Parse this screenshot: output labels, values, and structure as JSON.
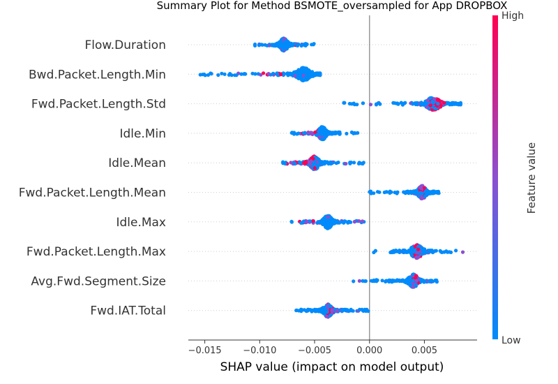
{
  "chart_data": {
    "type": "scatter",
    "subtype": "shap-beeswarm",
    "title": "Summary Plot for Method BSMOTE_oversampled for App DROPBOX",
    "xlabel": "SHAP value (impact on model output)",
    "xlim": [
      -0.0165,
      0.0098
    ],
    "xticks": [
      -0.015,
      -0.01,
      -0.005,
      0.0,
      0.005
    ],
    "xtick_labels": [
      "−0.015",
      "−0.010",
      "−0.005",
      "0.000",
      "0.005"
    ],
    "zero_line": 0.0,
    "colorbar": {
      "title": "Feature value",
      "high_label": "High",
      "low_label": "Low",
      "low_color": "#008bfb",
      "mid_color": "#8c4fd0",
      "high_color": "#ff0052"
    },
    "features": [
      {
        "name": "Flow.Duration",
        "range": [
          -0.0105,
          -0.0045
        ],
        "mode": -0.0078,
        "high_region": [
          -0.0068,
          -0.006
        ]
      },
      {
        "name": "Bwd.Packet.Length.Min",
        "range": [
          -0.0155,
          -0.0045
        ],
        "mode": -0.006,
        "high_region": [
          -0.01,
          -0.008
        ]
      },
      {
        "name": "Fwd.Packet.Length.Std",
        "range": [
          -0.0028,
          0.0083
        ],
        "mode": 0.0058,
        "high_region": [
          0.0052,
          0.0068
        ]
      },
      {
        "name": "Idle.Min",
        "range": [
          -0.0072,
          -0.001
        ],
        "mode": -0.0043,
        "high_region": [
          -0.0068,
          -0.0045
        ]
      },
      {
        "name": "Idle.Mean",
        "range": [
          -0.008,
          -0.0005
        ],
        "mode": -0.005,
        "high_region": [
          -0.0075,
          -0.0048
        ]
      },
      {
        "name": "Fwd.Packet.Length.Mean",
        "range": [
          0.0,
          0.0067
        ],
        "mode": 0.0048,
        "high_region": [
          0.0045,
          0.0052
        ]
      },
      {
        "name": "Idle.Max",
        "range": [
          -0.0072,
          -0.0005
        ],
        "mode": -0.0038,
        "high_region": [
          -0.007,
          -0.0045
        ]
      },
      {
        "name": "Fwd.Packet.Length.Max",
        "range": [
          -0.001,
          0.0086
        ],
        "mode": 0.0043,
        "high_region": [
          0.004,
          0.0048
        ]
      },
      {
        "name": "Avg.Fwd.Segment.Size",
        "range": [
          -0.0015,
          0.0063
        ],
        "mode": 0.004,
        "high_region": [
          0.0038,
          0.0048
        ]
      },
      {
        "name": "Fwd.IAT.Total",
        "range": [
          -0.0068,
          0.0
        ],
        "mode": -0.0038,
        "high_region": [
          -0.004,
          -0.003
        ]
      }
    ]
  }
}
